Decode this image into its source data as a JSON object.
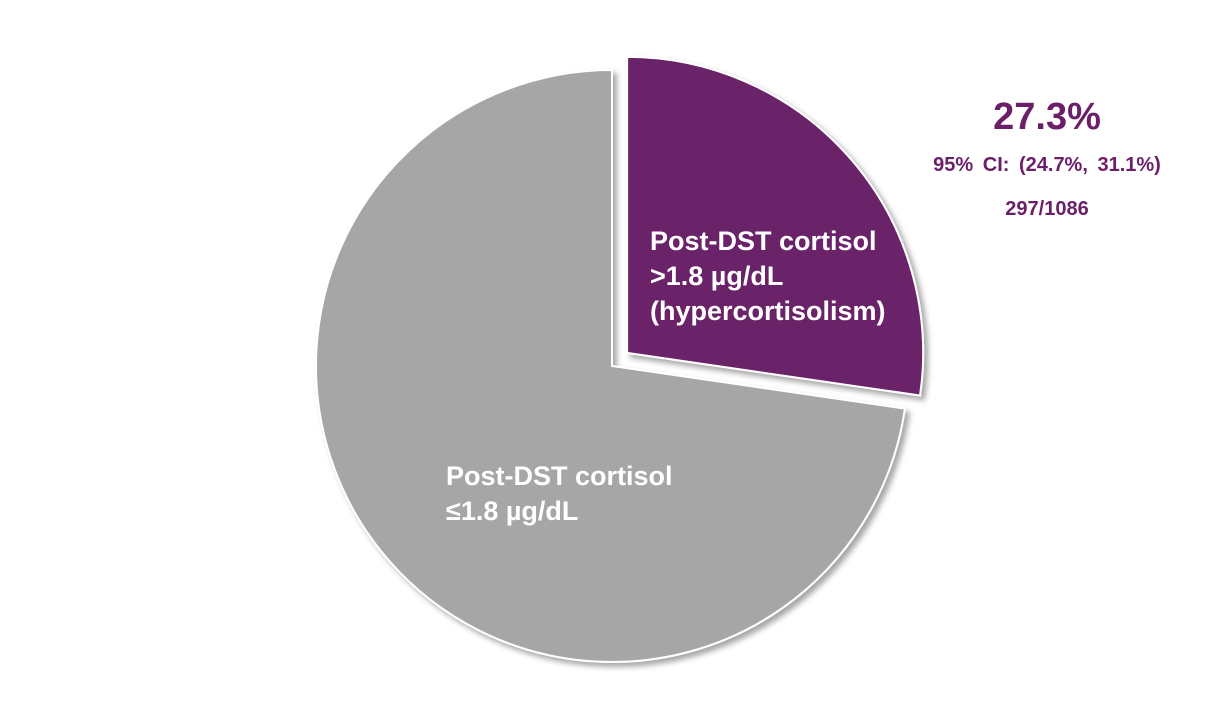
{
  "chart_data": {
    "type": "pie",
    "title": "",
    "slices": [
      {
        "label_lines": [
          "Post-DST cortisol",
          ">1.8 µg/dL",
          "(hypercortisolism)"
        ],
        "value": 27.3,
        "count": 297,
        "color": "#6b2169",
        "exploded": true
      },
      {
        "label_lines": [
          "Post-DST cortisol",
          "≤1.8 µg/dL"
        ],
        "value": 72.7,
        "count": 789,
        "color": "#a6a6a6",
        "exploded": false
      }
    ],
    "callout": {
      "percent": "27.3%",
      "ci": "95% CI: (24.7%, 31.1%)",
      "count": "297/1086",
      "color": "#6b1f69"
    }
  }
}
